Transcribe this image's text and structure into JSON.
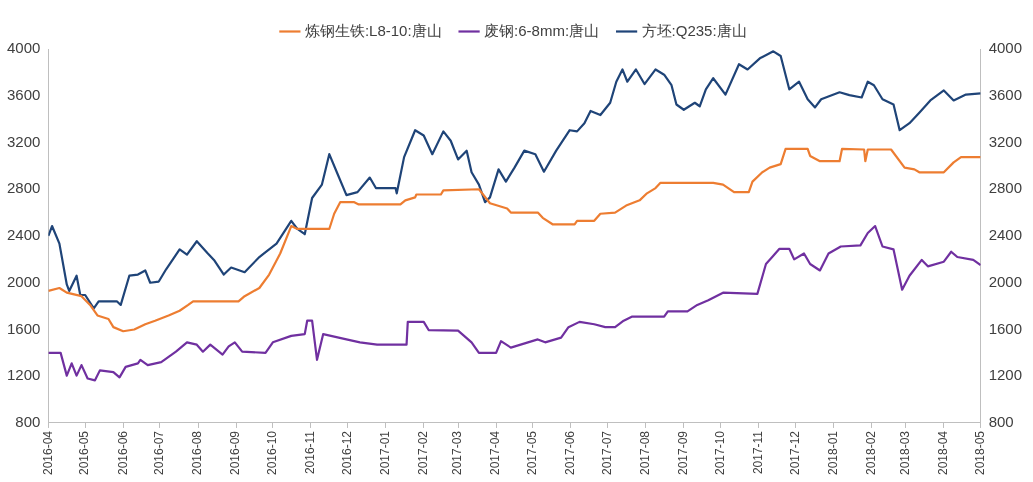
{
  "chart_data": {
    "type": "line",
    "legend": "top",
    "marker": "none",
    "xlim": [
      "2016-04-01",
      "2018-05-01"
    ],
    "xticks": [
      "2016-04",
      "2016-05",
      "2016-06",
      "2016-07",
      "2016-08",
      "2016-09",
      "2016-10",
      "2016-11",
      "2016-12",
      "2017-01",
      "2017-02",
      "2017-03",
      "2017-04",
      "2017-05",
      "2017-06",
      "2017-07",
      "2017-08",
      "2017-09",
      "2017-10",
      "2017-11",
      "2017-12",
      "2018-01",
      "2018-02",
      "2018-03",
      "2018-04",
      "2018-05"
    ],
    "ylim": [
      800,
      4000
    ],
    "yticks": [
      800,
      1200,
      1600,
      2000,
      2400,
      2800,
      3200,
      3600,
      4000
    ],
    "y2lim": [
      800,
      4000
    ],
    "y2ticks": [
      800,
      1200,
      1600,
      2000,
      2400,
      2800,
      3200,
      3600,
      4000
    ],
    "series": [
      {
        "name": "炼钢生铁:L8-10:唐山",
        "color": "#ed7d31",
        "x": [
          "2016-04-01",
          "2016-04-10",
          "2016-04-16",
          "2016-04-28",
          "2016-05-05",
          "2016-05-11",
          "2016-05-20",
          "2016-05-24",
          "2016-06-01",
          "2016-06-10",
          "2016-06-19",
          "2016-06-27",
          "2016-07-08",
          "2016-07-17",
          "2016-07-24",
          "2016-07-28",
          "2016-09-03",
          "2016-09-08",
          "2016-09-20",
          "2016-09-28",
          "2016-10-07",
          "2016-10-16",
          "2016-10-21",
          "2016-11-16",
          "2016-11-20",
          "2016-11-25",
          "2016-12-06",
          "2016-12-10",
          "2017-01-13",
          "2017-01-17",
          "2017-01-25",
          "2017-01-26",
          "2017-02-15",
          "2017-02-17",
          "2017-03-18",
          "2017-03-27",
          "2017-04-10",
          "2017-04-13",
          "2017-05-05",
          "2017-05-09",
          "2017-05-17",
          "2017-06-04",
          "2017-06-06",
          "2017-06-20",
          "2017-06-25",
          "2017-07-07",
          "2017-07-16",
          "2017-07-27",
          "2017-08-02",
          "2017-08-09",
          "2017-08-13",
          "2017-09-25",
          "2017-10-03",
          "2017-10-12",
          "2017-10-24",
          "2017-10-27",
          "2017-11-04",
          "2017-11-10",
          "2017-11-19",
          "2017-11-23",
          "2017-12-11",
          "2017-12-13",
          "2017-12-21",
          "2018-01-06",
          "2018-01-08",
          "2018-01-26",
          "2018-01-27",
          "2018-01-29",
          "2018-02-17",
          "2018-02-28",
          "2018-03-08",
          "2018-03-12",
          "2018-04-01",
          "2018-04-09",
          "2018-04-15",
          "2018-05-01"
        ],
        "values": [
          1930,
          1955,
          1915,
          1885,
          1810,
          1720,
          1690,
          1620,
          1585,
          1600,
          1645,
          1675,
          1720,
          1760,
          1810,
          1840,
          1840,
          1885,
          1955,
          2070,
          2250,
          2485,
          2460,
          2460,
          2590,
          2690,
          2690,
          2670,
          2670,
          2705,
          2730,
          2755,
          2755,
          2790,
          2800,
          2680,
          2635,
          2600,
          2600,
          2555,
          2500,
          2500,
          2530,
          2530,
          2590,
          2600,
          2660,
          2705,
          2765,
          2810,
          2855,
          2855,
          2840,
          2775,
          2775,
          2865,
          2945,
          2985,
          3015,
          3145,
          3145,
          3085,
          3040,
          3040,
          3145,
          3140,
          3040,
          3140,
          3140,
          2985,
          2970,
          2945,
          2945,
          3030,
          3075,
          3075
        ]
      },
      {
        "name": "废钢:6-8mm:唐山",
        "color": "#7030a0",
        "x": [
          "2016-04-01",
          "2016-04-11",
          "2016-04-16",
          "2016-04-20",
          "2016-04-24",
          "2016-04-28",
          "2016-05-03",
          "2016-05-09",
          "2016-05-13",
          "2016-05-24",
          "2016-05-29",
          "2016-06-03",
          "2016-06-13",
          "2016-06-15",
          "2016-06-21",
          "2016-07-02",
          "2016-07-14",
          "2016-07-23",
          "2016-07-31",
          "2016-08-05",
          "2016-08-11",
          "2016-08-21",
          "2016-08-26",
          "2016-08-31",
          "2016-09-06",
          "2016-09-25",
          "2016-10-01",
          "2016-10-16",
          "2016-10-27",
          "2016-10-29",
          "2016-11-02",
          "2016-11-06",
          "2016-11-11",
          "2016-11-30",
          "2016-12-11",
          "2016-12-25",
          "2017-01-18",
          "2017-01-19",
          "2017-02-01",
          "2017-02-05",
          "2017-03-01",
          "2017-03-12",
          "2017-03-18",
          "2017-04-01",
          "2017-04-05",
          "2017-04-13",
          "2017-04-21",
          "2017-05-05",
          "2017-05-11",
          "2017-05-24",
          "2017-05-30",
          "2017-06-08",
          "2017-06-20",
          "2017-06-29",
          "2017-07-07",
          "2017-07-14",
          "2017-07-21",
          "2017-08-16",
          "2017-08-19",
          "2017-09-04",
          "2017-09-12",
          "2017-09-21",
          "2017-10-03",
          "2017-10-31",
          "2017-11-07",
          "2017-11-18",
          "2017-11-26",
          "2017-11-30",
          "2017-12-08",
          "2017-12-13",
          "2017-12-21",
          "2017-12-28",
          "2018-01-07",
          "2018-01-23",
          "2018-01-29",
          "2018-02-04",
          "2018-02-10",
          "2018-02-19",
          "2018-02-26",
          "2018-03-04",
          "2018-03-14",
          "2018-03-19",
          "2018-04-01",
          "2018-04-07",
          "2018-04-12",
          "2018-04-25",
          "2018-05-01"
        ],
        "values": [
          1400,
          1400,
          1205,
          1310,
          1205,
          1295,
          1180,
          1165,
          1250,
          1235,
          1190,
          1280,
          1310,
          1340,
          1295,
          1320,
          1410,
          1490,
          1470,
          1410,
          1470,
          1385,
          1455,
          1490,
          1410,
          1400,
          1490,
          1545,
          1560,
          1675,
          1675,
          1340,
          1560,
          1515,
          1490,
          1470,
          1470,
          1665,
          1665,
          1595,
          1590,
          1490,
          1400,
          1400,
          1500,
          1445,
          1470,
          1515,
          1490,
          1530,
          1620,
          1665,
          1645,
          1620,
          1620,
          1675,
          1710,
          1710,
          1755,
          1755,
          1810,
          1850,
          1915,
          1905,
          2160,
          2290,
          2290,
          2200,
          2250,
          2160,
          2105,
          2250,
          2310,
          2320,
          2425,
          2485,
          2310,
          2285,
          1940,
          2060,
          2195,
          2140,
          2180,
          2265,
          2220,
          2195,
          2150
        ]
      },
      {
        "name": "方坯:Q235:唐山",
        "color": "#1f4478",
        "x": [
          "2016-04-01",
          "2016-04-04",
          "2016-04-10",
          "2016-04-16",
          "2016-04-18",
          "2016-04-24",
          "2016-04-27",
          "2016-05-01",
          "2016-05-08",
          "2016-05-12",
          "2016-05-27",
          "2016-05-30",
          "2016-06-06",
          "2016-06-13",
          "2016-06-19",
          "2016-06-23",
          "2016-06-30",
          "2016-07-06",
          "2016-07-17",
          "2016-07-23",
          "2016-07-31",
          "2016-08-09",
          "2016-08-14",
          "2016-08-22",
          "2016-08-28",
          "2016-09-08",
          "2016-09-20",
          "2016-10-04",
          "2016-10-16",
          "2016-10-21",
          "2016-10-27",
          "2016-11-02",
          "2016-11-10",
          "2016-11-16",
          "2016-11-22",
          "2016-11-30",
          "2016-12-09",
          "2016-12-19",
          "2016-12-24",
          "2017-01-09",
          "2017-01-10",
          "2017-01-16",
          "2017-01-25",
          "2017-02-01",
          "2017-02-08",
          "2017-02-17",
          "2017-02-23",
          "2017-03-01",
          "2017-03-08",
          "2017-03-12",
          "2017-03-18",
          "2017-03-23",
          "2017-03-27",
          "2017-04-03",
          "2017-04-09",
          "2017-04-16",
          "2017-04-24",
          "2017-05-03",
          "2017-05-10",
          "2017-05-20",
          "2017-05-31",
          "2017-06-06",
          "2017-06-12",
          "2017-06-17",
          "2017-06-25",
          "2017-07-03",
          "2017-07-08",
          "2017-07-13",
          "2017-07-17",
          "2017-07-24",
          "2017-07-31",
          "2017-08-09",
          "2017-08-16",
          "2017-08-22",
          "2017-08-26",
          "2017-09-01",
          "2017-09-10",
          "2017-09-14",
          "2017-09-19",
          "2017-09-25",
          "2017-10-05",
          "2017-10-16",
          "2017-10-23",
          "2017-11-02",
          "2017-11-13",
          "2017-11-19",
          "2017-11-26",
          "2017-12-04",
          "2017-12-11",
          "2017-12-17",
          "2017-12-22",
          "2018-01-06",
          "2018-01-14",
          "2018-01-24",
          "2018-01-29",
          "2018-02-03",
          "2018-02-10",
          "2018-02-19",
          "2018-02-24",
          "2018-03-04",
          "2018-03-12",
          "2018-03-21",
          "2018-04-01",
          "2018-04-09",
          "2018-04-19",
          "2018-05-01"
        ],
        "values": [
          2400,
          2485,
          2335,
          1985,
          1930,
          2060,
          1895,
          1895,
          1780,
          1840,
          1840,
          1810,
          2060,
          2070,
          2105,
          2000,
          2010,
          2115,
          2285,
          2240,
          2355,
          2250,
          2195,
          2070,
          2130,
          2090,
          2220,
          2335,
          2530,
          2460,
          2415,
          2725,
          2840,
          3100,
          2950,
          2750,
          2775,
          2900,
          2810,
          2810,
          2765,
          3075,
          3305,
          3260,
          3100,
          3295,
          3215,
          3055,
          3130,
          2945,
          2840,
          2690,
          2730,
          2970,
          2865,
          2985,
          3130,
          3100,
          2950,
          3130,
          3305,
          3295,
          3365,
          3470,
          3435,
          3540,
          3720,
          3825,
          3720,
          3825,
          3700,
          3825,
          3780,
          3690,
          3525,
          3480,
          3540,
          3510,
          3655,
          3750,
          3610,
          3870,
          3825,
          3920,
          3980,
          3940,
          3655,
          3720,
          3570,
          3500,
          3570,
          3630,
          3605,
          3585,
          3720,
          3690,
          3570,
          3525,
          3305,
          3365,
          3455,
          3560,
          3645,
          3560,
          3610,
          3620
        ]
      }
    ]
  }
}
